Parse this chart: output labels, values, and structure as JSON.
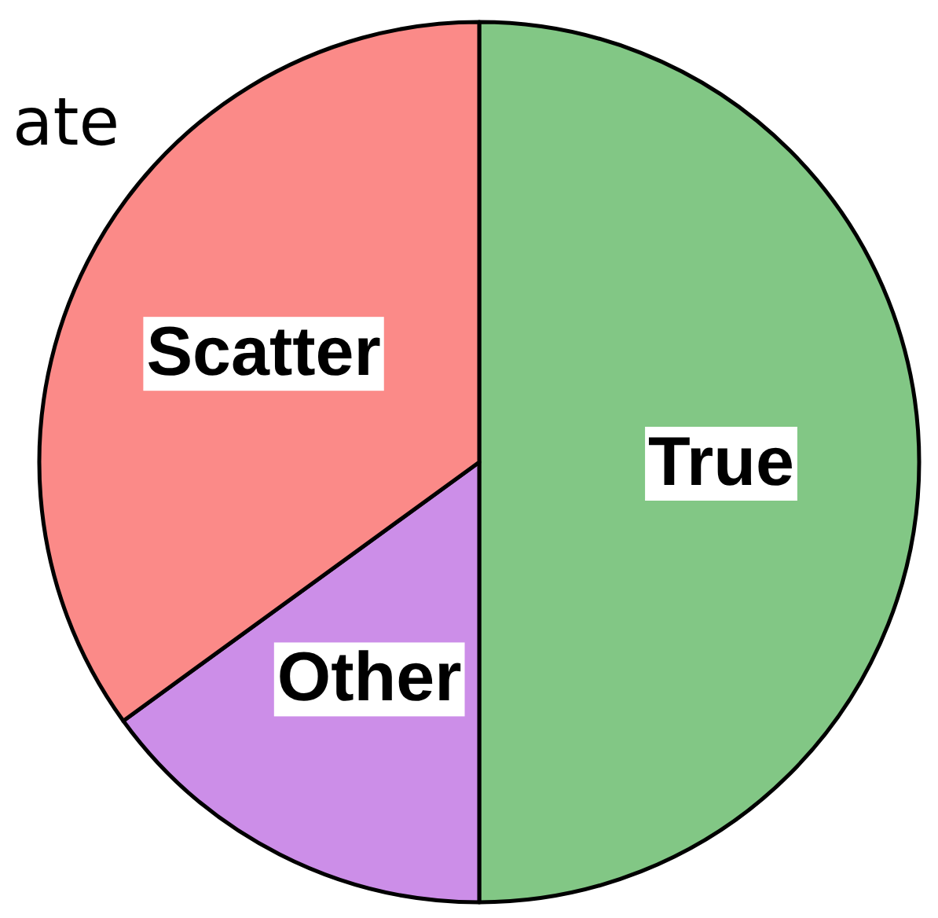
{
  "chart_data": {
    "type": "pie",
    "categories": [
      "True",
      "Other",
      "Scatter"
    ],
    "values": [
      50,
      15,
      35
    ],
    "colors": [
      "#82c785",
      "#cc8ee8",
      "#fb8a88"
    ],
    "annotations": [
      "ate"
    ]
  }
}
